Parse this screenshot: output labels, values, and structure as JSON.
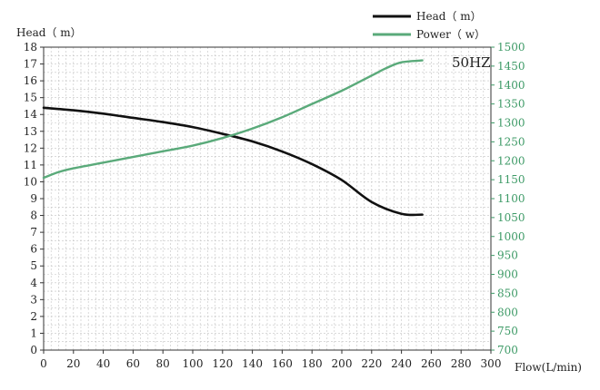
{
  "chart_data": {
    "type": "line",
    "annotation": "50HZ",
    "xlabel": "Flow(L/min)",
    "ylabel_left": "Head（ m）",
    "xlim": [
      0,
      300
    ],
    "ylim_left": [
      0,
      18
    ],
    "ylim_right": [
      700,
      1500
    ],
    "x_ticks": [
      0,
      20,
      40,
      60,
      80,
      100,
      120,
      140,
      160,
      180,
      200,
      220,
      240,
      260,
      280,
      300
    ],
    "y_left_ticks": [
      0,
      1,
      2,
      3,
      4,
      5,
      6,
      7,
      8,
      9,
      10,
      11,
      12,
      13,
      14,
      15,
      16,
      17,
      18
    ],
    "y_right_ticks": [
      700,
      750,
      800,
      850,
      900,
      950,
      1000,
      1050,
      1100,
      1150,
      1200,
      1250,
      1300,
      1350,
      1400,
      1450,
      1500
    ],
    "grid": true,
    "legend_position": "top-right",
    "series": [
      {
        "name": "Head（ m）",
        "axis": "left",
        "color": "#111111",
        "x": [
          0,
          20,
          40,
          60,
          80,
          100,
          120,
          140,
          160,
          180,
          200,
          220,
          240,
          254
        ],
        "y": [
          14.4,
          14.25,
          14.05,
          13.8,
          13.55,
          13.25,
          12.85,
          12.4,
          11.8,
          11.05,
          10.1,
          8.8,
          8.1,
          8.05
        ]
      },
      {
        "name": "Power（ w）",
        "axis": "right",
        "color": "#5aaa7a",
        "x": [
          0,
          10,
          20,
          40,
          60,
          80,
          100,
          120,
          140,
          160,
          180,
          200,
          220,
          230,
          240,
          254
        ],
        "y": [
          1155,
          1170,
          1180,
          1195,
          1210,
          1225,
          1240,
          1260,
          1285,
          1315,
          1350,
          1385,
          1425,
          1445,
          1460,
          1465
        ]
      }
    ]
  }
}
